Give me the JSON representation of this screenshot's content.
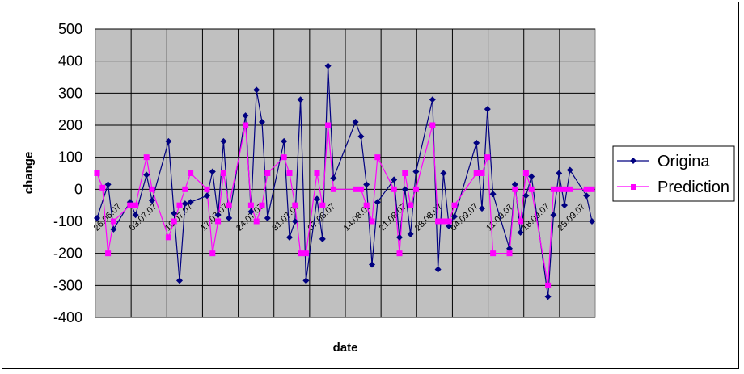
{
  "chart_data": {
    "type": "line",
    "xlabel": "date",
    "ylabel": "change",
    "ylim": [
      -400,
      500
    ],
    "yticks": [
      -400,
      -300,
      -200,
      -100,
      0,
      100,
      200,
      300,
      400,
      500
    ],
    "xtick_labels": [
      "26.06.07",
      "03.07.07",
      "10.07.07",
      "17.07.07",
      "24.07.07",
      "31.07.07",
      "07.08.07",
      "14.08.07",
      "21.08.07",
      "28.08.07",
      "04.09.07",
      "11.09.07",
      "18.09.07",
      "25.09.07"
    ],
    "grid": true,
    "legend": "right",
    "background": "#c0c0c0",
    "series": [
      {
        "name": "Origina",
        "color": "#000080",
        "marker": "diamond",
        "points": [
          [
            0,
            -90
          ],
          [
            2,
            15
          ],
          [
            3,
            -125
          ],
          [
            6,
            -40
          ],
          [
            7,
            -80
          ],
          [
            9,
            45
          ],
          [
            10,
            -35
          ],
          [
            13,
            150
          ],
          [
            14,
            -75
          ],
          [
            15,
            -285
          ],
          [
            16,
            -45
          ],
          [
            17,
            -40
          ],
          [
            20,
            -20
          ],
          [
            21,
            55
          ],
          [
            22,
            -80
          ],
          [
            23,
            150
          ],
          [
            24,
            -90
          ],
          [
            27,
            230
          ],
          [
            28,
            -70
          ],
          [
            29,
            310
          ],
          [
            30,
            210
          ],
          [
            31,
            -90
          ],
          [
            34,
            150
          ],
          [
            35,
            -150
          ],
          [
            36,
            -100
          ],
          [
            37,
            280
          ],
          [
            38,
            -285
          ],
          [
            40,
            -30
          ],
          [
            41,
            -155
          ],
          [
            42,
            385
          ],
          [
            43,
            35
          ],
          [
            47,
            210
          ],
          [
            48,
            165
          ],
          [
            49,
            15
          ],
          [
            50,
            -235
          ],
          [
            51,
            -40
          ],
          [
            54,
            30
          ],
          [
            55,
            -150
          ],
          [
            56,
            0
          ],
          [
            57,
            -140
          ],
          [
            58,
            55
          ],
          [
            61,
            280
          ],
          [
            62,
            -250
          ],
          [
            63,
            50
          ],
          [
            64,
            -115
          ],
          [
            65,
            -85
          ],
          [
            69,
            145
          ],
          [
            70,
            -60
          ],
          [
            71,
            250
          ],
          [
            72,
            -15
          ],
          [
            75,
            -185
          ],
          [
            76,
            15
          ],
          [
            77,
            -135
          ],
          [
            78,
            -20
          ],
          [
            79,
            40
          ],
          [
            82,
            -335
          ],
          [
            83,
            -80
          ],
          [
            84,
            50
          ],
          [
            85,
            -50
          ],
          [
            86,
            60
          ],
          [
            89,
            -20
          ],
          [
            90,
            -100
          ]
        ]
      },
      {
        "name": "Prediction",
        "color": "#ff00ff",
        "marker": "square",
        "points": [
          [
            0,
            50
          ],
          [
            1,
            5
          ],
          [
            2,
            -200
          ],
          [
            3,
            -100
          ],
          [
            6,
            -50
          ],
          [
            7,
            -50
          ],
          [
            9,
            100
          ],
          [
            10,
            0
          ],
          [
            13,
            -150
          ],
          [
            14,
            -100
          ],
          [
            15,
            -50
          ],
          [
            16,
            0
          ],
          [
            17,
            50
          ],
          [
            20,
            0
          ],
          [
            21,
            -200
          ],
          [
            22,
            -100
          ],
          [
            23,
            50
          ],
          [
            24,
            -50
          ],
          [
            27,
            200
          ],
          [
            28,
            -50
          ],
          [
            29,
            -100
          ],
          [
            30,
            -50
          ],
          [
            31,
            50
          ],
          [
            34,
            100
          ],
          [
            35,
            50
          ],
          [
            36,
            -50
          ],
          [
            37,
            -200
          ],
          [
            38,
            -200
          ],
          [
            40,
            50
          ],
          [
            41,
            -50
          ],
          [
            42,
            200
          ],
          [
            43,
            0
          ],
          [
            47,
            0
          ],
          [
            48,
            0
          ],
          [
            49,
            -50
          ],
          [
            50,
            -100
          ],
          [
            51,
            100
          ],
          [
            54,
            0
          ],
          [
            55,
            -200
          ],
          [
            56,
            50
          ],
          [
            57,
            -50
          ],
          [
            58,
            0
          ],
          [
            61,
            200
          ],
          [
            62,
            -100
          ],
          [
            63,
            -100
          ],
          [
            64,
            -100
          ],
          [
            65,
            -50
          ],
          [
            69,
            50
          ],
          [
            70,
            50
          ],
          [
            71,
            100
          ],
          [
            72,
            -200
          ],
          [
            75,
            -200
          ],
          [
            76,
            0
          ],
          [
            77,
            -100
          ],
          [
            78,
            50
          ],
          [
            79,
            0
          ],
          [
            82,
            -300
          ],
          [
            83,
            0
          ],
          [
            84,
            0
          ],
          [
            85,
            0
          ],
          [
            86,
            0
          ],
          [
            89,
            0
          ],
          [
            90,
            0
          ]
        ]
      }
    ]
  }
}
